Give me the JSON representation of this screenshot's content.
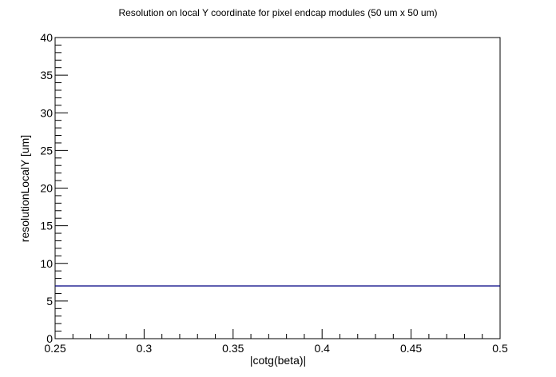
{
  "chart_data": {
    "type": "line",
    "title": "Resolution on local Y coordinate for pixel endcap modules (50 um x 50 um)",
    "xlabel": "|cotg(beta)|",
    "ylabel": "resolutionLocalY [um]",
    "xlim": [
      0.25,
      0.5
    ],
    "ylim": [
      0,
      40
    ],
    "x_ticks": [
      "0.25",
      "0.3",
      "0.35",
      "0.4",
      "0.45",
      "0.5"
    ],
    "y_ticks": [
      "0",
      "5",
      "10",
      "15",
      "20",
      "25",
      "30",
      "35",
      "40"
    ],
    "grid": false,
    "series": [
      {
        "x": [
          0.25,
          0.5
        ],
        "y": [
          7.0,
          7.0
        ],
        "color": "#000080"
      }
    ]
  }
}
